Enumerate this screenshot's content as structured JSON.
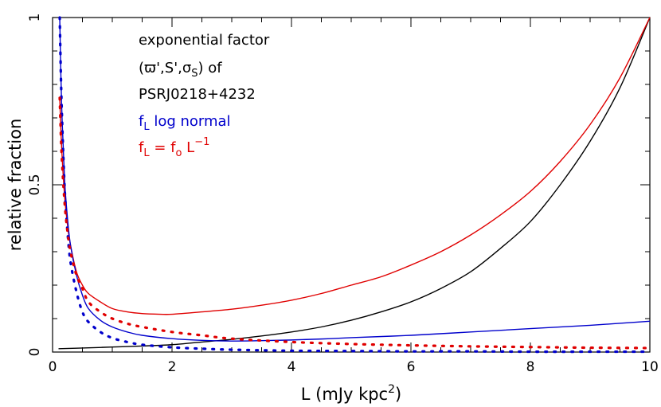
{
  "chart_data": {
    "type": "line",
    "title": "",
    "xlabel": "L (mJy kpc2)",
    "xlabel_parts": {
      "base": "L (mJy kpc",
      "sup": "2",
      "close": ")"
    },
    "ylabel": "relative fraction",
    "xlim": [
      0,
      10
    ],
    "ylim": [
      0,
      1
    ],
    "x_ticks": [
      0,
      2,
      4,
      6,
      8,
      10
    ],
    "x_tick_labels": [
      "0",
      "2",
      "4",
      "6",
      "8",
      "10"
    ],
    "y_ticks": [
      0,
      0.5,
      1
    ],
    "y_tick_labels": [
      "0",
      "0.5",
      "1"
    ],
    "grid": false,
    "annotations": {
      "line1": "exponential factor",
      "line2_open": "(",
      "line2_mid": "ϖ',S',σ",
      "line2_sub": "S",
      "line2_close": ") of",
      "line3": "PSRJ0218+4232",
      "blue_f": "f",
      "blue_sub": "L",
      "blue_rest": " log normal",
      "red_f": "f",
      "red_sub": "L",
      "red_eq": " = f",
      "red_sub2": "o",
      "red_L": " L",
      "red_sup": "−1"
    },
    "series": [
      {
        "style": "solid",
        "color": "#000000",
        "x": [
          0.1,
          0.5,
          1,
          1.5,
          2,
          2.5,
          3,
          3.5,
          4,
          4.5,
          5,
          5.5,
          6,
          6.5,
          7,
          7.5,
          8,
          8.5,
          9,
          9.5,
          10
        ],
        "y": [
          0.01,
          0.012,
          0.015,
          0.018,
          0.022,
          0.03,
          0.038,
          0.048,
          0.06,
          0.075,
          0.095,
          0.12,
          0.15,
          0.19,
          0.24,
          0.31,
          0.39,
          0.5,
          0.63,
          0.79,
          1.0
        ]
      },
      {
        "style": "solid",
        "color": "#e00000",
        "x": [
          0.12,
          0.15,
          0.2,
          0.25,
          0.3,
          0.4,
          0.5,
          0.6,
          0.8,
          1,
          1.25,
          1.5,
          1.8,
          2,
          2.5,
          3,
          3.5,
          4,
          4.5,
          5,
          5.5,
          6,
          6.5,
          7,
          7.5,
          8,
          8.5,
          9,
          9.5,
          10
        ],
        "y": [
          0.76,
          0.62,
          0.47,
          0.38,
          0.32,
          0.24,
          0.2,
          0.175,
          0.15,
          0.13,
          0.12,
          0.115,
          0.113,
          0.113,
          0.12,
          0.128,
          0.14,
          0.155,
          0.175,
          0.2,
          0.225,
          0.26,
          0.3,
          0.35,
          0.41,
          0.48,
          0.57,
          0.68,
          0.82,
          1.0
        ]
      },
      {
        "style": "solid",
        "color": "#0000cc",
        "x": [
          0.12,
          0.15,
          0.2,
          0.25,
          0.3,
          0.4,
          0.5,
          0.6,
          0.8,
          1,
          1.25,
          1.5,
          2,
          2.5,
          3,
          3.5,
          4,
          4.5,
          5,
          6,
          7,
          8,
          9,
          10
        ],
        "y": [
          1.0,
          0.75,
          0.52,
          0.4,
          0.32,
          0.23,
          0.17,
          0.13,
          0.095,
          0.075,
          0.06,
          0.05,
          0.04,
          0.035,
          0.033,
          0.034,
          0.036,
          0.039,
          0.043,
          0.05,
          0.06,
          0.07,
          0.08,
          0.092
        ]
      },
      {
        "style": "dotted",
        "color": "#0000cc",
        "x": [
          0.12,
          0.15,
          0.2,
          0.25,
          0.3,
          0.4,
          0.5,
          0.6,
          0.8,
          1,
          1.25,
          1.5,
          2,
          2.5,
          3,
          4,
          5,
          6,
          7,
          8,
          9,
          10
        ],
        "y": [
          1.0,
          0.75,
          0.5,
          0.36,
          0.27,
          0.18,
          0.12,
          0.09,
          0.06,
          0.042,
          0.03,
          0.022,
          0.014,
          0.01,
          0.007,
          0.004,
          0.003,
          0.002,
          0.002,
          0.001,
          0.001,
          0.001
        ]
      },
      {
        "style": "dotted",
        "color": "#e00000",
        "x": [
          0.12,
          0.15,
          0.2,
          0.25,
          0.3,
          0.4,
          0.5,
          0.6,
          0.8,
          1,
          1.25,
          1.5,
          2,
          2.5,
          3,
          4,
          5,
          6,
          7,
          8,
          9,
          10
        ],
        "y": [
          0.76,
          0.6,
          0.45,
          0.36,
          0.3,
          0.23,
          0.19,
          0.15,
          0.12,
          0.1,
          0.085,
          0.075,
          0.06,
          0.05,
          0.04,
          0.03,
          0.024,
          0.02,
          0.017,
          0.015,
          0.013,
          0.012
        ]
      }
    ]
  }
}
